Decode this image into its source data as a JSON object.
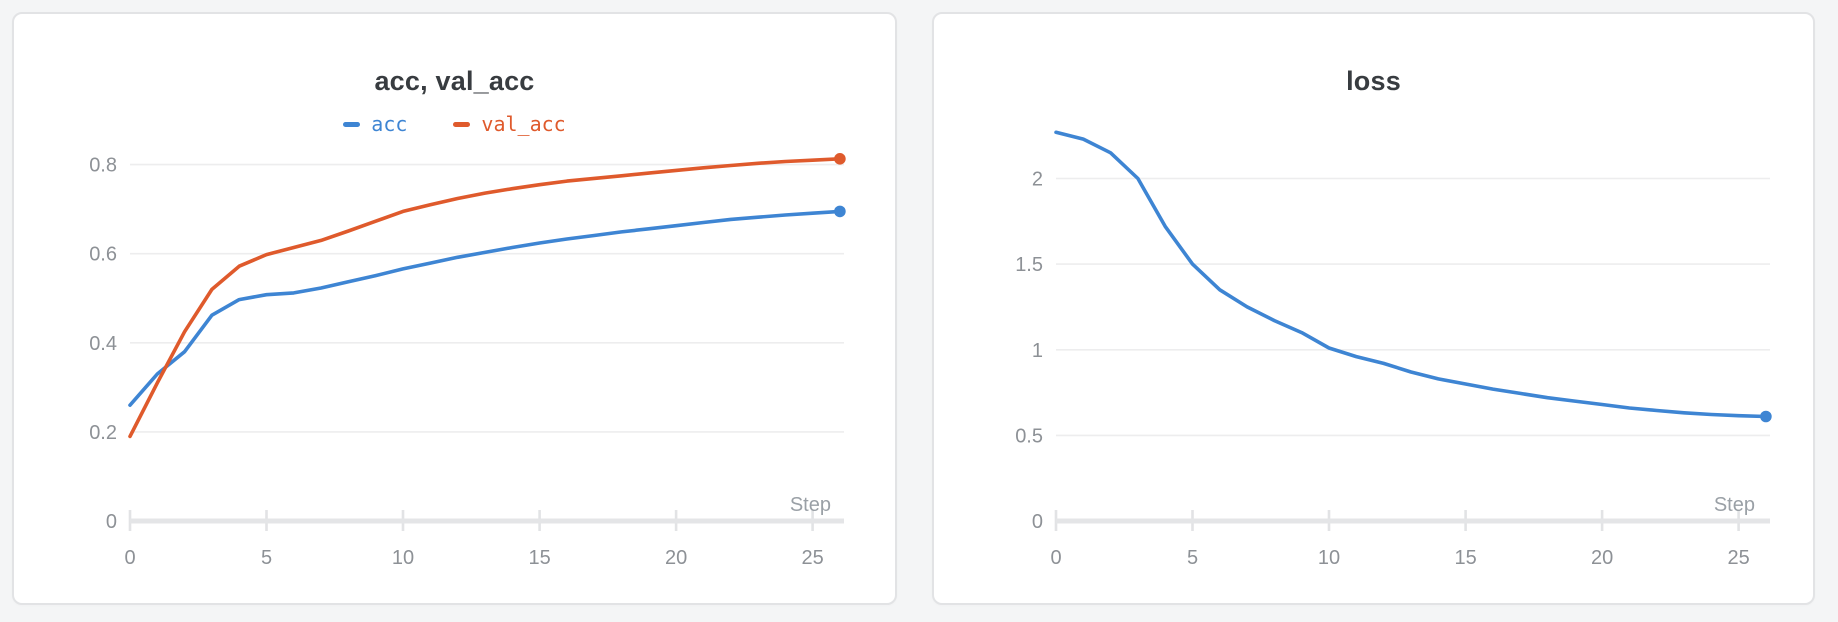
{
  "page": {
    "background": "#f4f5f6"
  },
  "colors": {
    "acc": "#3e85d3",
    "val_acc": "#df5a2c",
    "loss": "#3e85d3",
    "gridline": "#ededee",
    "tick_mark": "#e2e3e5",
    "axis": "#e4e5e7",
    "tick_label": "#8d9196",
    "step_label": "#9aa0a6",
    "title": "#383c40",
    "panel_border": "#e2e3e5",
    "panel_bg": "#ffffff"
  },
  "panels": [
    {
      "title": "acc, val_acc",
      "xlabel": "Step",
      "legend": [
        {
          "label": "acc",
          "color_key": "acc"
        },
        {
          "label": "val_acc",
          "color_key": "val_acc"
        }
      ]
    },
    {
      "title": "loss",
      "xlabel": "Step",
      "legend": []
    }
  ],
  "chart_data": [
    {
      "type": "line",
      "title": "acc, val_acc",
      "xlabel": "Step",
      "ylabel": "",
      "legend_position": "top",
      "grid": "horizontal-only",
      "end_dot": true,
      "x": [
        0,
        1,
        2,
        3,
        4,
        5,
        6,
        7,
        8,
        9,
        10,
        11,
        12,
        13,
        14,
        15,
        16,
        17,
        18,
        19,
        20,
        21,
        22,
        23,
        24,
        25,
        26
      ],
      "series": [
        {
          "name": "acc",
          "color_key": "acc",
          "values": [
            0.26,
            0.33,
            0.38,
            0.462,
            0.497,
            0.508,
            0.512,
            0.523,
            0.537,
            0.551,
            0.566,
            0.579,
            0.592,
            0.603,
            0.614,
            0.624,
            0.633,
            0.641,
            0.649,
            0.656,
            0.663,
            0.67,
            0.677,
            0.682,
            0.687,
            0.691,
            0.695
          ]
        },
        {
          "name": "val_acc",
          "color_key": "val_acc",
          "values": [
            0.19,
            0.31,
            0.425,
            0.52,
            0.572,
            0.598,
            0.614,
            0.63,
            0.651,
            0.673,
            0.695,
            0.71,
            0.724,
            0.736,
            0.746,
            0.755,
            0.763,
            0.769,
            0.775,
            0.781,
            0.787,
            0.793,
            0.798,
            0.803,
            0.807,
            0.81,
            0.813
          ]
        }
      ],
      "xlim": [
        0,
        26.15
      ],
      "ylim": [
        0,
        0.88
      ],
      "xtick_values": [
        0,
        5,
        10,
        15,
        20,
        25
      ],
      "xtick_labels": [
        "0",
        "5",
        "10",
        "15",
        "20",
        "25"
      ],
      "ytick_values": [
        0,
        0.2,
        0.4,
        0.6,
        0.8
      ],
      "ytick_labels": [
        "0",
        "0.2",
        "0.4",
        "0.6",
        "0.8"
      ]
    },
    {
      "type": "line",
      "title": "loss",
      "xlabel": "Step",
      "ylabel": "",
      "legend_position": "none",
      "grid": "horizontal-only",
      "end_dot": true,
      "x": [
        0,
        1,
        2,
        3,
        4,
        5,
        6,
        7,
        8,
        9,
        10,
        11,
        12,
        13,
        14,
        15,
        16,
        17,
        18,
        19,
        20,
        21,
        22,
        23,
        24,
        25,
        26
      ],
      "series": [
        {
          "name": "loss",
          "color_key": "loss",
          "values": [
            2.27,
            2.23,
            2.15,
            2.0,
            1.72,
            1.5,
            1.35,
            1.25,
            1.17,
            1.1,
            1.01,
            0.96,
            0.92,
            0.87,
            0.83,
            0.8,
            0.77,
            0.745,
            0.72,
            0.7,
            0.68,
            0.66,
            0.645,
            0.632,
            0.622,
            0.615,
            0.61
          ]
        }
      ],
      "xlim": [
        0,
        26.15
      ],
      "ylim": [
        0,
        2.4
      ],
      "xtick_values": [
        0,
        5,
        10,
        15,
        20,
        25
      ],
      "xtick_labels": [
        "0",
        "5",
        "10",
        "15",
        "20",
        "25"
      ],
      "ytick_values": [
        0,
        0.5,
        1,
        1.5,
        2
      ],
      "ytick_labels": [
        "0",
        "0.5",
        "1",
        "1.5",
        "2"
      ]
    }
  ]
}
